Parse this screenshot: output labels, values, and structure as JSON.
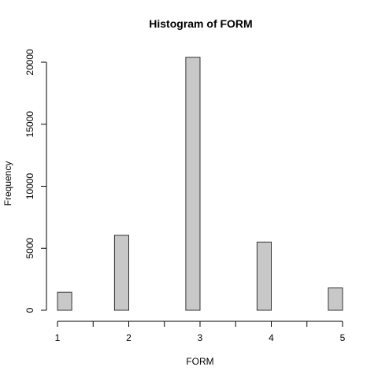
{
  "chart_data": {
    "type": "bar",
    "title": "Histogram of FORM",
    "xlabel": "FORM",
    "ylabel": "Frequency",
    "bin_width": 0.2,
    "bins": [
      {
        "start": 1.0,
        "end": 1.2,
        "count": 1450
      },
      {
        "start": 1.2,
        "end": 1.4,
        "count": 0
      },
      {
        "start": 1.4,
        "end": 1.6,
        "count": 0
      },
      {
        "start": 1.6,
        "end": 1.8,
        "count": 0
      },
      {
        "start": 1.8,
        "end": 2.0,
        "count": 6050
      },
      {
        "start": 2.0,
        "end": 2.2,
        "count": 0
      },
      {
        "start": 2.2,
        "end": 2.4,
        "count": 0
      },
      {
        "start": 2.4,
        "end": 2.6,
        "count": 0
      },
      {
        "start": 2.6,
        "end": 2.8,
        "count": 0
      },
      {
        "start": 2.8,
        "end": 3.0,
        "count": 20400
      },
      {
        "start": 3.0,
        "end": 3.2,
        "count": 0
      },
      {
        "start": 3.2,
        "end": 3.4,
        "count": 0
      },
      {
        "start": 3.4,
        "end": 3.6,
        "count": 0
      },
      {
        "start": 3.6,
        "end": 3.8,
        "count": 0
      },
      {
        "start": 3.8,
        "end": 4.0,
        "count": 5500
      },
      {
        "start": 4.0,
        "end": 4.2,
        "count": 0
      },
      {
        "start": 4.2,
        "end": 4.4,
        "count": 0
      },
      {
        "start": 4.4,
        "end": 4.6,
        "count": 0
      },
      {
        "start": 4.6,
        "end": 4.8,
        "count": 0
      },
      {
        "start": 4.8,
        "end": 5.0,
        "count": 1800
      }
    ],
    "xlim": [
      1,
      5
    ],
    "ylim": [
      0,
      21000
    ],
    "x_ticks": [
      {
        "value": 1,
        "label": "1"
      },
      {
        "value": 2,
        "label": "2"
      },
      {
        "value": 3,
        "label": "3"
      },
      {
        "value": 4,
        "label": "4"
      },
      {
        "value": 5,
        "label": "5"
      }
    ],
    "y_ticks": [
      {
        "value": 0,
        "label": "0"
      },
      {
        "value": 5000,
        "label": "5000"
      },
      {
        "value": 10000,
        "label": "10000"
      },
      {
        "value": 15000,
        "label": "15000"
      },
      {
        "value": 20000,
        "label": "20000"
      }
    ],
    "grid": false,
    "colors": {
      "bar_fill": "#c8c8c8",
      "bar_border": "#333333"
    }
  }
}
